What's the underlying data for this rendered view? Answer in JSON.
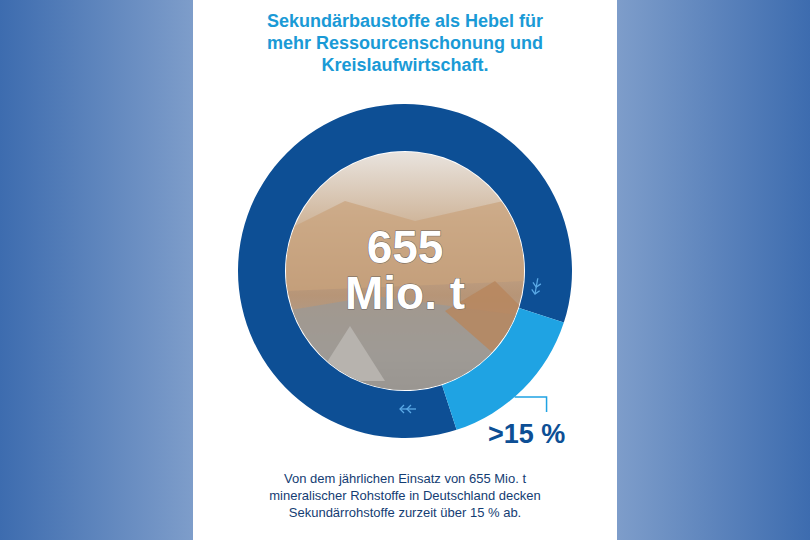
{
  "chart_data": {
    "type": "donut",
    "title": "Sekundärbaustoffe als Hebel für mehr Ressourcenschonung und Kreislaufwirtschaft.",
    "center_label": "655 Mio. t",
    "values": [
      85,
      15
    ],
    "value_labels": [
      null,
      ">15 %"
    ],
    "colors": [
      "#0d4f95",
      "#1fa3e3"
    ],
    "data_labels": true,
    "note": "Von dem jährlichen Einsatz von 655 Mio. t mineralischer Rohstoffe in Deutschland decken Sekundärrohstoffe zurzeit über 15 % ab."
  }
}
